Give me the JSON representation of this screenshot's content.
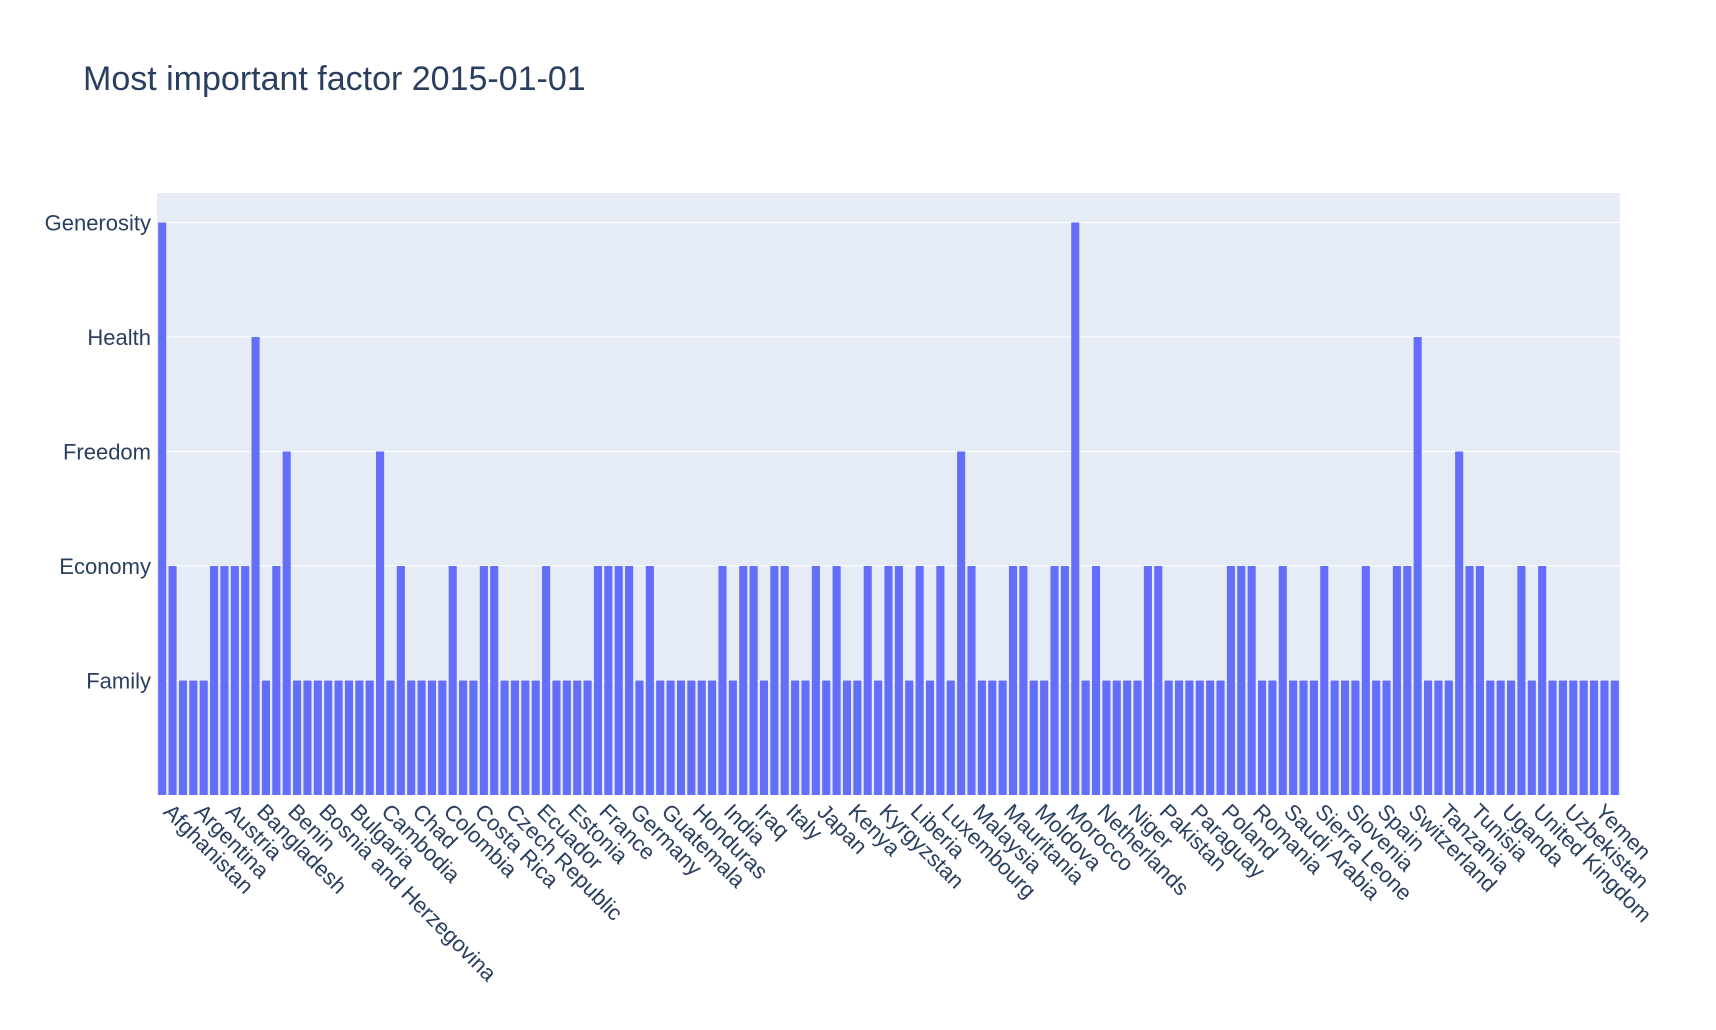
{
  "chart_data": {
    "type": "bar",
    "title": "Most important factor 2015-01-01",
    "xlabel": "",
    "ylabel": "",
    "y_categories": [
      "Family",
      "Economy",
      "Freedom",
      "Health",
      "Generosity"
    ],
    "tick_labels": [
      "Afghanistan",
      "Argentina",
      "Austria",
      "Bangladesh",
      "Benin",
      "Bosnia and Herzegovina",
      "Bulgaria",
      "Cambodia",
      "Chad",
      "Colombia",
      "Costa Rica",
      "Czech Republic",
      "Ecuador",
      "Estonia",
      "France",
      "Germany",
      "Guatemala",
      "Honduras",
      "India",
      "Iraq",
      "Italy",
      "Japan",
      "Kenya",
      "Kyrgyzstan",
      "Liberia",
      "Luxembourg",
      "Malaysia",
      "Mauritania",
      "Moldova",
      "Morocco",
      "Netherlands",
      "Niger",
      "Pakistan",
      "Paraguay",
      "Poland",
      "Romania",
      "Saudi Arabia",
      "Sierra Leone",
      "Slovenia",
      "Spain",
      "Switzerland",
      "Tanzania",
      "Tunisia",
      "Uganda",
      "United Kingdom",
      "Uzbekistan",
      "Yemen"
    ],
    "values": [
      "Generosity",
      "Economy",
      "Family",
      "Family",
      "Family",
      "Economy",
      "Economy",
      "Economy",
      "Economy",
      "Health",
      "Family",
      "Economy",
      "Freedom",
      "Family",
      "Family",
      "Family",
      "Family",
      "Family",
      "Family",
      "Family",
      "Family",
      "Freedom",
      "Family",
      "Economy",
      "Family",
      "Family",
      "Family",
      "Family",
      "Economy",
      "Family",
      "Family",
      "Economy",
      "Economy",
      "Family",
      "Family",
      "Family",
      "Family",
      "Economy",
      "Family",
      "Family",
      "Family",
      "Family",
      "Economy",
      "Economy",
      "Economy",
      "Economy",
      "Family",
      "Economy",
      "Family",
      "Family",
      "Family",
      "Family",
      "Family",
      "Family",
      "Economy",
      "Family",
      "Economy",
      "Economy",
      "Family",
      "Economy",
      "Economy",
      "Family",
      "Family",
      "Economy",
      "Family",
      "Economy",
      "Family",
      "Family",
      "Economy",
      "Family",
      "Economy",
      "Economy",
      "Family",
      "Economy",
      "Family",
      "Economy",
      "Family",
      "Freedom",
      "Economy",
      "Family",
      "Family",
      "Family",
      "Economy",
      "Economy",
      "Family",
      "Family",
      "Economy",
      "Economy",
      "Generosity",
      "Family",
      "Economy",
      "Family",
      "Family",
      "Family",
      "Family",
      "Economy",
      "Economy",
      "Family",
      "Family",
      "Family",
      "Family",
      "Family",
      "Family",
      "Economy",
      "Economy",
      "Economy",
      "Family",
      "Family",
      "Economy",
      "Family",
      "Family",
      "Family",
      "Economy",
      "Family",
      "Family",
      "Family",
      "Economy",
      "Family",
      "Family",
      "Economy",
      "Economy",
      "Health",
      "Family",
      "Family",
      "Family",
      "Freedom",
      "Economy",
      "Economy",
      "Family",
      "Family",
      "Family",
      "Economy",
      "Family",
      "Economy",
      "Family",
      "Family",
      "Family",
      "Family",
      "Family",
      "Family",
      "Family"
    ],
    "bar_color": "#636efa",
    "plot_background": "#e5ecf6",
    "grid": true,
    "legend": "none"
  }
}
